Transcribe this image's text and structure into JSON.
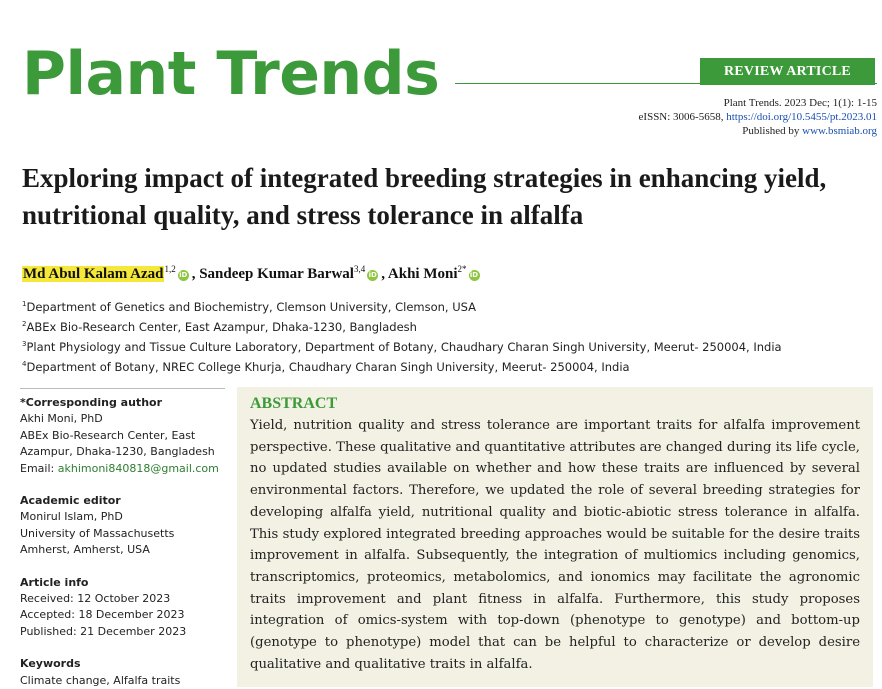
{
  "journal": {
    "name": "Plant Trends",
    "badge": "REVIEW ARTICLE",
    "citation": "Plant Trends. 2023 Dec; 1(1): 1-15",
    "eissn_prefix": "eISSN: 3006-5658, ",
    "doi": "https://doi.org/10.5455/pt.2023.01",
    "published_by_prefix": "Published by ",
    "publisher_url": "www.bsmiab.org"
  },
  "article": {
    "title": "Exploring impact of integrated breeding strategies in enhancing yield, nutritional quality, and stress tolerance in alfalfa"
  },
  "authors": [
    {
      "name": "Md Abul Kalam Azad",
      "sup": "1,2"
    },
    {
      "name": "Sandeep Kumar Barwal",
      "sup": "3,4"
    },
    {
      "name": "Akhi Moni",
      "sup": "2*"
    }
  ],
  "orcid_glyph": "iD",
  "affiliations": [
    {
      "sup": "1",
      "text": "Department of Genetics and Biochemistry, Clemson University, Clemson, USA"
    },
    {
      "sup": "2",
      "text": "ABEx Bio-Research Center, East Azampur, Dhaka-1230, Bangladesh"
    },
    {
      "sup": "3",
      "text": "Plant Physiology and Tissue Culture Laboratory, Department of Botany, Chaudhary Charan Singh University, Meerut- 250004, India"
    },
    {
      "sup": "4",
      "text": "Department of Botany, NREC College Khurja, Chaudhary Charan Singh University, Meerut- 250004, India"
    }
  ],
  "sidebar": {
    "corresponding": {
      "heading": "*Corresponding author",
      "lines": [
        "Akhi Moni, PhD",
        "ABEx Bio-Research Center, East",
        "Azampur, Dhaka-1230, Bangladesh"
      ],
      "email_label": "Email: ",
      "email": "akhimoni840818@gmail.com"
    },
    "editor": {
      "heading": "Academic editor",
      "lines": [
        "Monirul Islam, PhD",
        "University of Massachusetts",
        "Amherst, Amherst, USA"
      ]
    },
    "article_info": {
      "heading": "Article info",
      "lines": [
        "Received: 12 October 2023",
        "Accepted: 18 December 2023",
        "Published: 21 December 2023"
      ]
    },
    "keywords": {
      "heading": "Keywords",
      "line": "Climate change, Alfalfa traits"
    }
  },
  "abstract": {
    "heading": "ABSTRACT",
    "text": "Yield, nutrition quality and stress tolerance are important traits for alfalfa improvement perspective. These qualitative and quantitative attributes are changed during its life cycle, no updated studies available on whether and how these traits are influenced by several environmental factors. Therefore, we updated the role of several breeding strategies for developing alfalfa yield, nutritional quality and biotic-abiotic stress tolerance in alfalfa. This study explored integrated breeding approaches would be suitable for the desire traits improvement in alfalfa. Subsequently, the integration of multiomics including genomics, transcriptomics, proteomics, metabolomics, and ionomics may facilitate the agronomic traits improvement and plant fitness in alfalfa. Furthermore, this study proposes integration of omics-system with top-down (phenotype to genotype) and bottom-up (genotype to phenotype) model that can be helpful to characterize or develop desire qualitative and qualitative traits in alfalfa."
  },
  "colors": {
    "brand_green": "#3d9a3a",
    "abstract_bg": "#f2f1e3",
    "highlight": "#f5e83a",
    "link_blue": "#1a4fb0"
  }
}
